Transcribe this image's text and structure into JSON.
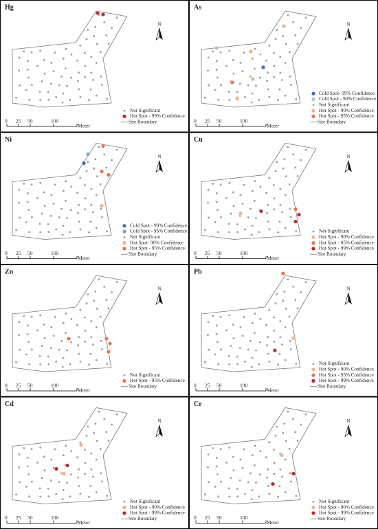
{
  "panels": [
    {
      "label": "Hg",
      "legend": [
        {
          "label": "Not Significant",
          "color": "#9a9a9a"
        },
        {
          "label": "Hot Spot - 99% Confidence",
          "color": "#c0282a"
        },
        {
          "label": "Site Boundary",
          "color": "#777777"
        }
      ]
    },
    {
      "label": "As",
      "legend": [
        {
          "label": "Cold Spot- 99% Confidence",
          "color": "#3a6fb5"
        },
        {
          "label": "Cold Spot - 90% Confidence",
          "color": "#bdbdbd"
        },
        {
          "label": "Not Significant",
          "color": "#9a9a9a"
        },
        {
          "label": "Hot Spot - 90% Confidence",
          "color": "#f5b183"
        },
        {
          "label": "Hot Spot - 95% Confidence",
          "color": "#e8734a"
        },
        {
          "label": "Site Boundary",
          "color": "#777777"
        }
      ]
    },
    {
      "label": "Ni",
      "legend": [
        {
          "label": "Cold Spot - 99% Confidence",
          "color": "#3a6fb5"
        },
        {
          "label": "Cold Spot - 95% Confidence",
          "color": "#7f9fcf"
        },
        {
          "label": "Not Significant",
          "color": "#9a9a9a"
        },
        {
          "label": "Hot Spot- 90% Confidence",
          "color": "#f5b183"
        },
        {
          "label": "Hot Spot - 95% Confidence",
          "color": "#e8734a"
        },
        {
          "label": "Site Boundary",
          "color": "#777777"
        }
      ]
    },
    {
      "label": "Cu",
      "legend": [
        {
          "label": "Not Significant",
          "color": "#9a9a9a"
        },
        {
          "label": "Hot Spot - 90% Confidence",
          "color": "#f5b183"
        },
        {
          "label": "Hot Spot - 95% Confidence",
          "color": "#e8734a"
        },
        {
          "label": "Hot Spot - 99% Confidence",
          "color": "#c0282a"
        },
        {
          "label": "Site Boundary",
          "color": "#777777"
        }
      ]
    },
    {
      "label": "Zn",
      "legend": [
        {
          "label": "Not Significant",
          "color": "#9a9a9a"
        },
        {
          "label": "Hot Spot - 95% Confidence",
          "color": "#e8734a"
        },
        {
          "label": "Site Boundary",
          "color": "#777777"
        }
      ]
    },
    {
      "label": "Pb",
      "legend": [
        {
          "label": "Not Significant",
          "color": "#9a9a9a"
        },
        {
          "label": "Hot Spot - 90% Confidence",
          "color": "#f5b183"
        },
        {
          "label": "Hot Spot - 95% Confidence",
          "color": "#e8734a"
        },
        {
          "label": "Hot Spot - 99% Confidence",
          "color": "#c0282a"
        },
        {
          "label": "Site Boundary",
          "color": "#777777"
        }
      ]
    },
    {
      "label": "Cd",
      "legend": [
        {
          "label": "Not Significant",
          "color": "#9a9a9a"
        },
        {
          "label": "Hot Spot - 90% Confidence",
          "color": "#f5b183"
        },
        {
          "label": "Hot Spot - 99% Confidence",
          "color": "#c0282a"
        },
        {
          "label": "Site Boundary",
          "color": "#777777"
        }
      ]
    },
    {
      "label": "Cr",
      "legend": [
        {
          "label": "Not Significant",
          "color": "#9a9a9a"
        },
        {
          "label": "Hot Spot - 90% Confidence",
          "color": "#f5b183"
        },
        {
          "label": "Hot Spot - 99% Confidence",
          "color": "#c0282a"
        },
        {
          "label": "Site Boundary",
          "color": "#777777"
        }
      ]
    }
  ],
  "scale": [
    "0",
    "25",
    "50",
    "100"
  ],
  "scale_unit": "Meter",
  "north": "N"
}
